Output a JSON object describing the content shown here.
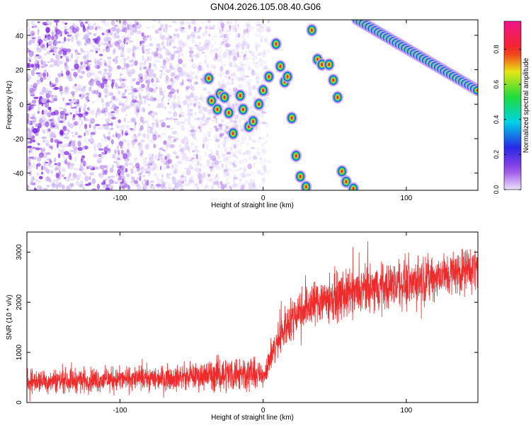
{
  "figure_title": "GN04.2026.105.08.40.G06",
  "colors": {
    "noise": "#7a1fe0",
    "snr_line": "#ee2a2a",
    "axis": "#000000"
  },
  "chart_data": [
    {
      "type": "heatmap",
      "title": "GN04.2026.105.08.40.G06",
      "xlabel": "Height of straight line (km)",
      "ylabel": "Frequency (Hz)",
      "xlim": [
        -165,
        150
      ],
      "ylim": [
        -50,
        49
      ],
      "xticks": [
        -100,
        0,
        100
      ],
      "yticks": [
        -40,
        -20,
        0,
        20,
        40
      ],
      "grid": false,
      "colorbar": {
        "label": "Normalized spectral amplitude",
        "range": [
          0.0,
          0.96
        ],
        "ticks": [
          0.0,
          0.2,
          0.4,
          0.6,
          0.8
        ],
        "colormap": "rainbow (violet → blue → cyan → green → yellow → red → magenta)"
      },
      "tracks": [
        {
          "name": "main descending line",
          "start": [
            66,
            49
          ],
          "end": [
            150,
            8
          ],
          "amplitude": 0.95
        },
        {
          "name": "zig-zag cluster near zero",
          "points": [
            [
              -38,
              15
            ],
            [
              -36,
              2
            ],
            [
              -32,
              -3
            ],
            [
              -30,
              6
            ],
            [
              -27,
              4
            ],
            [
              -24,
              -5
            ],
            [
              -21,
              -17
            ],
            [
              -16,
              5
            ],
            [
              -14,
              -3
            ],
            [
              -10,
              -13
            ],
            [
              -7,
              -10
            ],
            [
              -3,
              0
            ],
            [
              0,
              8
            ],
            [
              4,
              16
            ],
            [
              9,
              35
            ],
            [
              12,
              22
            ],
            [
              15,
              13
            ],
            [
              17,
              16
            ],
            [
              20,
              -8
            ],
            [
              23,
              -30
            ],
            [
              26,
              -42
            ],
            [
              30,
              -48
            ],
            [
              34,
              43
            ],
            [
              38,
              26
            ],
            [
              41,
              23
            ],
            [
              46,
              23
            ],
            [
              49,
              14
            ],
            [
              52,
              4
            ],
            [
              55,
              -39
            ],
            [
              58,
              -45
            ],
            [
              63,
              -49
            ]
          ],
          "amplitude": 0.9
        }
      ],
      "noise_region": {
        "x_range": [
          -165,
          0
        ],
        "amplitude": 0.1
      }
    },
    {
      "type": "line",
      "title": "",
      "xlabel": "Height of straight line (km)",
      "ylabel": "SNR (10 * v/v)",
      "xlim": [
        -165,
        150
      ],
      "ylim": [
        0,
        3400
      ],
      "xticks": [
        -100,
        0,
        100
      ],
      "yticks": [
        0,
        1000,
        2000,
        3000
      ],
      "grid": false,
      "series": [
        {
          "name": "SNR",
          "trend": {
            "x": [
              -165,
              -120,
              -80,
              -50,
              -30,
              -10,
              0,
              5,
              15,
              25,
              40,
              60,
              80,
              100,
              120,
              150
            ],
            "y": [
              430,
              450,
              480,
              520,
              560,
              600,
              520,
              900,
              1500,
              1850,
              2050,
              2150,
              2300,
              2400,
              2500,
              2700
            ]
          },
          "noise_band": {
            "x": [
              -165,
              -50,
              -30,
              -10,
              0,
              5,
              15,
              40,
              150
            ],
            "halfwidth": [
              350,
              350,
              520,
              520,
              300,
              450,
              600,
              700,
              650
            ]
          }
        }
      ]
    }
  ]
}
